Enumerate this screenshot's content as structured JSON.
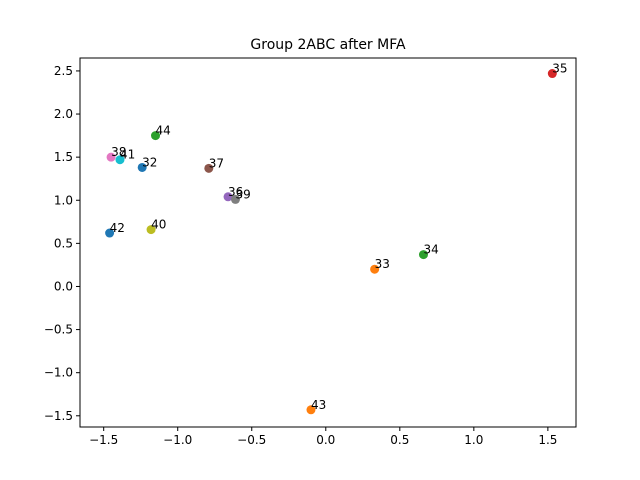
{
  "chart_data": {
    "type": "scatter",
    "title": "Group 2ABC after MFA",
    "xlabel": "",
    "ylabel": "",
    "xlim": [
      -1.66,
      1.69
    ],
    "ylim": [
      -1.63,
      2.65
    ],
    "grid": false,
    "legend": "none",
    "x_ticks": [
      {
        "value": -1.5,
        "label": "−1.5"
      },
      {
        "value": -1.0,
        "label": "−1.0"
      },
      {
        "value": -0.5,
        "label": "−0.5"
      },
      {
        "value": 0.0,
        "label": "0.0"
      },
      {
        "value": 0.5,
        "label": "0.5"
      },
      {
        "value": 1.0,
        "label": "1.0"
      },
      {
        "value": 1.5,
        "label": "1.5"
      }
    ],
    "y_ticks": [
      {
        "value": -1.5,
        "label": "−1.5"
      },
      {
        "value": -1.0,
        "label": "−1.0"
      },
      {
        "value": -0.5,
        "label": "−0.5"
      },
      {
        "value": 0.0,
        "label": "0.0"
      },
      {
        "value": 0.5,
        "label": "0.5"
      },
      {
        "value": 1.0,
        "label": "1.0"
      },
      {
        "value": 1.5,
        "label": "1.5"
      },
      {
        "value": 2.0,
        "label": "2.0"
      },
      {
        "value": 2.5,
        "label": "2.5"
      }
    ],
    "points": [
      {
        "label": "32",
        "x": -1.24,
        "y": 1.38,
        "color": "#1f77b4"
      },
      {
        "label": "33",
        "x": 0.33,
        "y": 0.2,
        "color": "#ff7f0e"
      },
      {
        "label": "34",
        "x": 0.66,
        "y": 0.37,
        "color": "#2ca02c"
      },
      {
        "label": "35",
        "x": 1.53,
        "y": 2.47,
        "color": "#d62728"
      },
      {
        "label": "36",
        "x": -0.66,
        "y": 1.04,
        "color": "#9467bd"
      },
      {
        "label": "37",
        "x": -0.79,
        "y": 1.37,
        "color": "#8c564b"
      },
      {
        "label": "38",
        "x": -1.45,
        "y": 1.5,
        "color": "#e377c2"
      },
      {
        "label": "39",
        "x": -0.61,
        "y": 1.01,
        "color": "#7f7f7f"
      },
      {
        "label": "40",
        "x": -1.18,
        "y": 0.66,
        "color": "#bcbd22"
      },
      {
        "label": "41",
        "x": -1.39,
        "y": 1.47,
        "color": "#17becf"
      },
      {
        "label": "42",
        "x": -1.46,
        "y": 0.62,
        "color": "#1f77b4"
      },
      {
        "label": "43",
        "x": -0.1,
        "y": -1.43,
        "color": "#ff7f0e"
      },
      {
        "label": "44",
        "x": -1.15,
        "y": 1.75,
        "color": "#2ca02c"
      }
    ]
  }
}
